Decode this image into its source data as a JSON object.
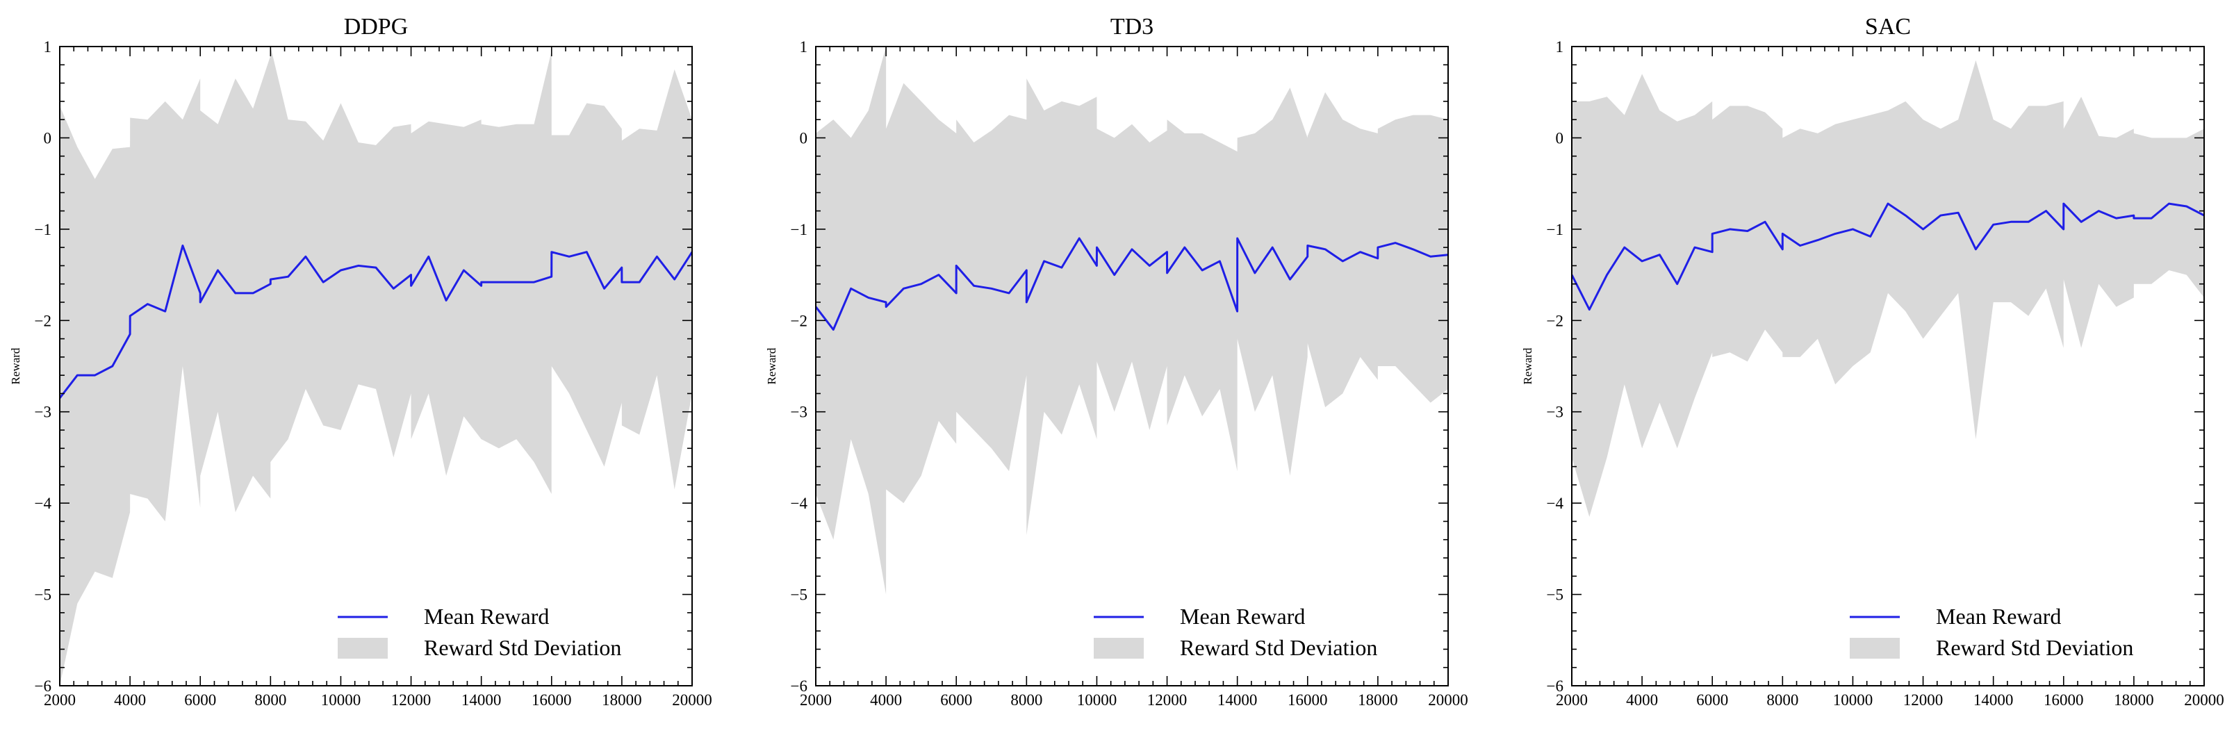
{
  "figure": {
    "legend_labels": [
      "Mean Reward",
      "Reward Std Deviation"
    ]
  },
  "colors": {
    "mean_line": "#1f1fe6",
    "std_fill": "#d9d9d9",
    "axis": "#000000"
  },
  "chart_data": [
    {
      "type": "line",
      "title": "DDPG",
      "xlabel": "",
      "ylabel": "Reward",
      "xlim": [
        2000,
        20000
      ],
      "ylim": [
        -6,
        1
      ],
      "xticks": [
        2000,
        4000,
        6000,
        8000,
        10000,
        12000,
        14000,
        16000,
        18000,
        20000
      ],
      "yticks": [
        -6,
        -5,
        -4,
        -3,
        -2,
        -1,
        0,
        1
      ],
      "legend": {
        "placement": "lower-right",
        "entries": [
          "Mean Reward",
          "Reward Std Deviation"
        ]
      },
      "x": [
        2000,
        2500,
        3000,
        3500,
        4000,
        4001,
        4500,
        5000,
        5500,
        5999,
        6000,
        6500,
        7000,
        7500,
        7999,
        8000,
        8500,
        9000,
        9500,
        10000,
        10500,
        11000,
        11500,
        11999,
        12000,
        12500,
        13000,
        13500,
        13999,
        14000,
        14500,
        15000,
        15500,
        15999,
        16000,
        16500,
        17000,
        17500,
        17999,
        18000,
        18500,
        19000,
        19500,
        20000
      ],
      "series": [
        {
          "name": "Mean Reward",
          "values": [
            -2.85,
            -2.6,
            -2.6,
            -2.5,
            -2.15,
            -1.95,
            -1.82,
            -1.9,
            -1.18,
            -1.7,
            -1.8,
            -1.45,
            -1.7,
            -1.7,
            -1.6,
            -1.55,
            -1.52,
            -1.3,
            -1.58,
            -1.45,
            -1.4,
            -1.42,
            -1.65,
            -1.5,
            -1.62,
            -1.3,
            -1.78,
            -1.45,
            -1.62,
            -1.58,
            -1.58,
            -1.58,
            -1.58,
            -1.52,
            -1.25,
            -1.3,
            -1.25,
            -1.65,
            -1.42,
            -1.58,
            -1.58,
            -1.3,
            -1.55,
            -1.25
          ]
        },
        {
          "name": "Upper Std",
          "values": [
            0.35,
            -0.1,
            -0.45,
            -0.12,
            -0.1,
            0.22,
            0.2,
            0.4,
            0.2,
            0.65,
            0.3,
            0.15,
            0.65,
            0.32,
            0.9,
            1.0,
            0.2,
            0.18,
            -0.03,
            0.38,
            -0.05,
            -0.08,
            0.12,
            0.15,
            0.05,
            0.18,
            0.15,
            0.12,
            0.2,
            0.15,
            0.12,
            0.15,
            0.15,
            0.95,
            0.03,
            0.03,
            0.38,
            0.35,
            0.1,
            -0.03,
            0.1,
            0.08,
            0.75,
            0.2
          ]
        },
        {
          "name": "Lower Std",
          "values": [
            -6.0,
            -5.1,
            -4.75,
            -4.82,
            -4.1,
            -3.9,
            -3.95,
            -4.2,
            -2.5,
            -4.05,
            -3.7,
            -3.0,
            -4.1,
            -3.7,
            -3.95,
            -3.55,
            -3.3,
            -2.75,
            -3.15,
            -3.2,
            -2.7,
            -2.75,
            -3.5,
            -2.8,
            -3.3,
            -2.8,
            -3.7,
            -3.05,
            -3.3,
            -3.3,
            -3.4,
            -3.3,
            -3.55,
            -3.9,
            -2.5,
            -2.8,
            -3.2,
            -3.6,
            -2.9,
            -3.15,
            -3.25,
            -2.6,
            -3.85,
            -2.8
          ]
        }
      ]
    },
    {
      "type": "line",
      "title": "TD3",
      "xlabel": "",
      "ylabel": "Reward",
      "xlim": [
        2000,
        20000
      ],
      "ylim": [
        -6,
        1
      ],
      "xticks": [
        2000,
        4000,
        6000,
        8000,
        10000,
        12000,
        14000,
        16000,
        18000,
        20000
      ],
      "yticks": [
        -6,
        -5,
        -4,
        -3,
        -2,
        -1,
        0,
        1
      ],
      "legend": {
        "placement": "lower-right",
        "entries": [
          "Mean Reward",
          "Reward Std Deviation"
        ]
      },
      "x": [
        2000,
        2500,
        3000,
        3500,
        4000,
        4001,
        4500,
        5000,
        5500,
        5999,
        6000,
        6500,
        7000,
        7500,
        7999,
        8000,
        8500,
        9000,
        9500,
        10000,
        10001,
        10500,
        11000,
        11500,
        11999,
        12000,
        12500,
        13000,
        13500,
        13999,
        14000,
        14500,
        15000,
        15500,
        15999,
        16000,
        16500,
        17000,
        17500,
        17999,
        18000,
        18500,
        19000,
        19500,
        20000
      ],
      "series": [
        {
          "name": "Mean Reward",
          "values": [
            -1.85,
            -2.1,
            -1.65,
            -1.75,
            -1.8,
            -1.85,
            -1.65,
            -1.6,
            -1.5,
            -1.7,
            -1.4,
            -1.62,
            -1.65,
            -1.7,
            -1.45,
            -1.8,
            -1.35,
            -1.42,
            -1.1,
            -1.4,
            -1.2,
            -1.5,
            -1.22,
            -1.4,
            -1.25,
            -1.48,
            -1.2,
            -1.45,
            -1.35,
            -1.9,
            -1.1,
            -1.48,
            -1.2,
            -1.55,
            -1.3,
            -1.18,
            -1.22,
            -1.35,
            -1.25,
            -1.32,
            -1.2,
            -1.15,
            -1.22,
            -1.3,
            -1.28
          ]
        },
        {
          "name": "Upper Std",
          "values": [
            0.05,
            0.2,
            0.0,
            0.3,
            1.0,
            0.1,
            0.6,
            0.4,
            0.2,
            0.05,
            0.2,
            -0.05,
            0.08,
            0.25,
            0.2,
            0.65,
            0.3,
            0.4,
            0.35,
            0.45,
            0.1,
            0.0,
            0.15,
            -0.05,
            0.08,
            0.2,
            0.05,
            0.05,
            -0.05,
            -0.15,
            0.0,
            0.05,
            0.2,
            0.55,
            0.0,
            0.02,
            0.5,
            0.2,
            0.1,
            0.05,
            0.1,
            0.2,
            0.25,
            0.25,
            0.2
          ]
        },
        {
          "name": "Lower Std",
          "values": [
            -3.9,
            -4.4,
            -3.3,
            -3.9,
            -5.0,
            -3.85,
            -4.0,
            -3.7,
            -3.1,
            -3.35,
            -3.0,
            -3.2,
            -3.4,
            -3.65,
            -2.6,
            -4.35,
            -3.0,
            -3.25,
            -2.7,
            -3.3,
            -2.45,
            -3.0,
            -2.45,
            -3.2,
            -2.5,
            -3.15,
            -2.6,
            -3.05,
            -2.75,
            -3.65,
            -2.2,
            -3.0,
            -2.6,
            -3.7,
            -2.4,
            -2.25,
            -2.95,
            -2.8,
            -2.4,
            -2.65,
            -2.5,
            -2.5,
            -2.7,
            -2.9,
            -2.75
          ]
        }
      ]
    },
    {
      "type": "line",
      "title": "SAC",
      "xlabel": "",
      "ylabel": "Reward",
      "xlim": [
        2000,
        20000
      ],
      "ylim": [
        -6,
        1
      ],
      "xticks": [
        2000,
        4000,
        6000,
        8000,
        10000,
        12000,
        14000,
        16000,
        18000,
        20000
      ],
      "yticks": [
        -6,
        -5,
        -4,
        -3,
        -2,
        -1,
        0,
        1
      ],
      "legend": {
        "placement": "lower-right",
        "entries": [
          "Mean Reward",
          "Reward Std Deviation"
        ]
      },
      "x": [
        2000,
        2500,
        3000,
        3500,
        4000,
        4500,
        5000,
        5500,
        5999,
        6000,
        6500,
        7000,
        7500,
        7999,
        8000,
        8500,
        9000,
        9500,
        10000,
        10500,
        11000,
        11500,
        12000,
        12500,
        13000,
        13500,
        14000,
        14500,
        15000,
        15500,
        15999,
        16000,
        16500,
        17000,
        17500,
        17999,
        18000,
        18500,
        19000,
        19500,
        20000
      ],
      "series": [
        {
          "name": "Mean Reward",
          "values": [
            -1.5,
            -1.88,
            -1.5,
            -1.2,
            -1.35,
            -1.28,
            -1.6,
            -1.2,
            -1.25,
            -1.05,
            -1.0,
            -1.02,
            -0.92,
            -1.22,
            -1.05,
            -1.18,
            -1.12,
            -1.05,
            -1.0,
            -1.08,
            -0.72,
            -0.85,
            -1.0,
            -0.85,
            -0.82,
            -1.22,
            -0.95,
            -0.92,
            -0.92,
            -0.8,
            -1.0,
            -0.72,
            -0.92,
            -0.8,
            -0.88,
            -0.85,
            -0.88,
            -0.88,
            -0.72,
            -0.75,
            -0.85
          ]
        },
        {
          "name": "Upper Std",
          "values": [
            0.4,
            0.4,
            0.45,
            0.25,
            0.7,
            0.3,
            0.18,
            0.25,
            0.4,
            0.2,
            0.35,
            0.35,
            0.28,
            0.1,
            0.0,
            0.1,
            0.05,
            0.15,
            0.2,
            0.25,
            0.3,
            0.4,
            0.2,
            0.1,
            0.2,
            0.85,
            0.2,
            0.1,
            0.35,
            0.35,
            0.4,
            0.1,
            0.45,
            0.02,
            0.0,
            0.1,
            0.05,
            0.0,
            0.0,
            0.0,
            0.1
          ]
        },
        {
          "name": "Lower Std",
          "values": [
            -3.5,
            -4.15,
            -3.5,
            -2.7,
            -3.4,
            -2.9,
            -3.4,
            -2.85,
            -2.35,
            -2.4,
            -2.35,
            -2.45,
            -2.1,
            -2.35,
            -2.4,
            -2.4,
            -2.2,
            -2.7,
            -2.5,
            -2.35,
            -1.7,
            -1.9,
            -2.2,
            -1.95,
            -1.7,
            -3.3,
            -1.8,
            -1.8,
            -1.95,
            -1.65,
            -2.3,
            -1.55,
            -2.3,
            -1.6,
            -1.85,
            -1.75,
            -1.6,
            -1.6,
            -1.45,
            -1.5,
            -1.75
          ]
        }
      ]
    }
  ]
}
